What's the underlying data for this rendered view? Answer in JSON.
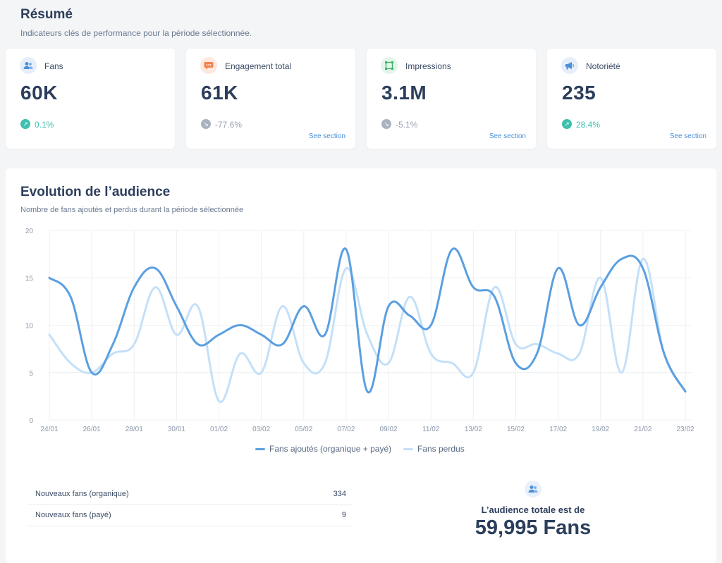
{
  "summary": {
    "title": "Résumé",
    "subtitle": "Indicateurs clés de performance pour la période sélectionnée."
  },
  "kpis": [
    {
      "label": "Fans",
      "value": "60K",
      "trend": "0.1%",
      "direction": "up",
      "see_section": "",
      "icon": "users-icon",
      "icon_bg": "#e6eefa",
      "icon_color": "#4a90d9"
    },
    {
      "label": "Engagement total",
      "value": "61K",
      "trend": "-77.6%",
      "direction": "down",
      "see_section": "See section",
      "icon": "speech-bubble-icon",
      "icon_bg": "#fde9df",
      "icon_color": "#f2844e"
    },
    {
      "label": "Impressions",
      "value": "3.1M",
      "trend": "-5.1%",
      "direction": "down",
      "see_section": "See section",
      "icon": "frame-icon",
      "icon_bg": "#e4f5ea",
      "icon_color": "#3bb36a"
    },
    {
      "label": "Notoriété",
      "value": "235",
      "trend": "28.4%",
      "direction": "up",
      "see_section": "See section",
      "icon": "megaphone-icon",
      "icon_bg": "#e6eefa",
      "icon_color": "#4a90d9"
    }
  ],
  "audience": {
    "title": "Evolution de l’audience",
    "subtitle": "Nombre de fans ajoutés et perdus durant la période sélectionnée"
  },
  "colors": {
    "series_added": "#5b9fe0",
    "series_lost": "#c4e0f8",
    "trend_up": "#3fbfae",
    "trend_down": "#9aa3b2",
    "link": "#4a90d9",
    "text_dark": "#2c3e5c"
  },
  "chart_data": {
    "type": "line",
    "x": [
      "24/01",
      "25/01",
      "26/01",
      "27/01",
      "28/01",
      "29/01",
      "30/01",
      "31/01",
      "01/02",
      "02/02",
      "03/02",
      "04/02",
      "05/02",
      "06/02",
      "07/02",
      "08/02",
      "09/02",
      "10/02",
      "11/02",
      "12/02",
      "13/02",
      "14/02",
      "15/02",
      "16/02",
      "17/02",
      "18/02",
      "19/02",
      "20/02",
      "21/02",
      "22/02",
      "23/02"
    ],
    "tick_labels": [
      "24/01",
      "26/01",
      "28/01",
      "30/01",
      "01/02",
      "03/02",
      "05/02",
      "07/02",
      "09/02",
      "11/02",
      "13/02",
      "15/02",
      "17/02",
      "19/02",
      "21/02",
      "23/02"
    ],
    "ylim": [
      0,
      20
    ],
    "yticks": [
      0,
      5,
      10,
      15,
      20
    ],
    "grid": true,
    "legend": "bottom-center",
    "series": [
      {
        "name": "Fans ajoutés (organique + payé)",
        "values": [
          15,
          13,
          5,
          8,
          14,
          16,
          12,
          8,
          9,
          10,
          9,
          8,
          12,
          9,
          18,
          3,
          12,
          11,
          10,
          18,
          14,
          13,
          6,
          7,
          16,
          10,
          14,
          17,
          16,
          7,
          3
        ]
      },
      {
        "name": "Fans perdus",
        "values": [
          9,
          6,
          5,
          7,
          8,
          14,
          9,
          12,
          2,
          7,
          5,
          12,
          6,
          6,
          16,
          9,
          6,
          13,
          7,
          6,
          5,
          14,
          8,
          8,
          7,
          7,
          15,
          5,
          17,
          7,
          3
        ]
      }
    ]
  },
  "stats": [
    {
      "label": "Nouveaux fans (organique)",
      "value": "334"
    },
    {
      "label": "Nouveaux fans (payé)",
      "value": "9"
    }
  ],
  "total": {
    "label": "L’audience totale est de",
    "value": "59,995 Fans",
    "icon": "users-icon"
  }
}
